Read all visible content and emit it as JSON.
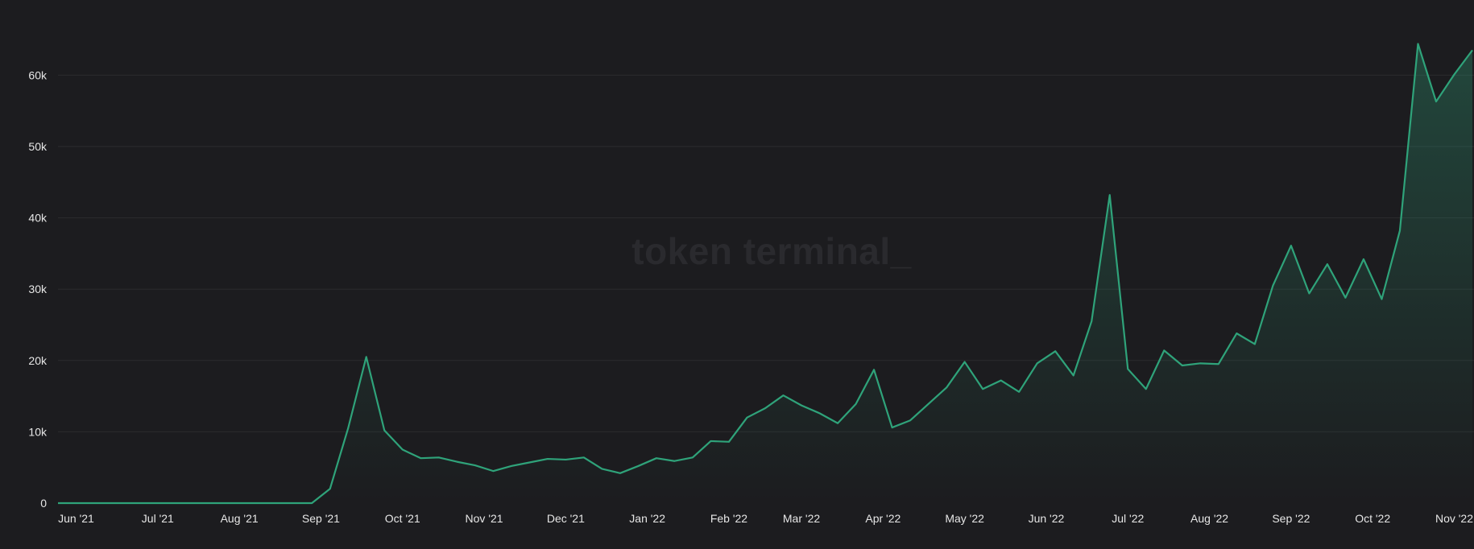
{
  "watermark": "token terminal_",
  "colors": {
    "background": "#1c1c1f",
    "grid": "#2b2b2f",
    "line": "#2fa37a",
    "fill": "#2fa37a",
    "text": "#e6e6e6"
  },
  "chart_data": {
    "type": "area",
    "title": "",
    "xlabel": "",
    "ylabel": "",
    "ylim": [
      0,
      65000
    ],
    "grid": true,
    "y_ticks": [
      {
        "value": 0,
        "label": "0"
      },
      {
        "value": 10000,
        "label": "10k"
      },
      {
        "value": 20000,
        "label": "20k"
      },
      {
        "value": 30000,
        "label": "30k"
      },
      {
        "value": 40000,
        "label": "40k"
      },
      {
        "value": 50000,
        "label": "50k"
      },
      {
        "value": 60000,
        "label": "60k"
      }
    ],
    "x_ticks": [
      {
        "x": 1,
        "label": "Jun '21"
      },
      {
        "x": 5.5,
        "label": "Jul '21"
      },
      {
        "x": 10,
        "label": "Aug '21"
      },
      {
        "x": 14.5,
        "label": "Sep '21"
      },
      {
        "x": 19,
        "label": "Oct '21"
      },
      {
        "x": 23.5,
        "label": "Nov '21"
      },
      {
        "x": 28,
        "label": "Dec '21"
      },
      {
        "x": 32.5,
        "label": "Jan '22"
      },
      {
        "x": 37,
        "label": "Feb '22"
      },
      {
        "x": 41,
        "label": "Mar '22"
      },
      {
        "x": 45.5,
        "label": "Apr '22"
      },
      {
        "x": 50,
        "label": "May '22"
      },
      {
        "x": 54.5,
        "label": "Jun '22"
      },
      {
        "x": 59,
        "label": "Jul '22"
      },
      {
        "x": 63.5,
        "label": "Aug '22"
      },
      {
        "x": 68,
        "label": "Sep '22"
      },
      {
        "x": 72.5,
        "label": "Oct '22"
      },
      {
        "x": 77,
        "label": "Nov '22"
      }
    ],
    "series": [
      {
        "values": [
          0,
          0,
          0,
          0,
          0,
          0,
          0,
          0,
          0,
          0,
          0,
          0,
          0,
          0,
          0,
          2000,
          10500,
          20500,
          10200,
          7500,
          6300,
          6400,
          5800,
          5300,
          4500,
          5200,
          5700,
          6200,
          6100,
          6400,
          4800,
          4200,
          5200,
          6300,
          5900,
          6400,
          8700,
          8600,
          12000,
          13300,
          15100,
          13700,
          12600,
          11200,
          13900,
          18700,
          10600,
          11600,
          13900,
          16200,
          19800,
          16000,
          17200,
          15600,
          19600,
          21300,
          17900,
          25500,
          43200,
          18800,
          16000,
          21400,
          19300,
          19600,
          19500,
          23800,
          22300,
          30500,
          36100,
          29400,
          33500,
          28800,
          34200,
          28600,
          38200,
          64400,
          56300,
          60100,
          63500
        ]
      }
    ]
  }
}
